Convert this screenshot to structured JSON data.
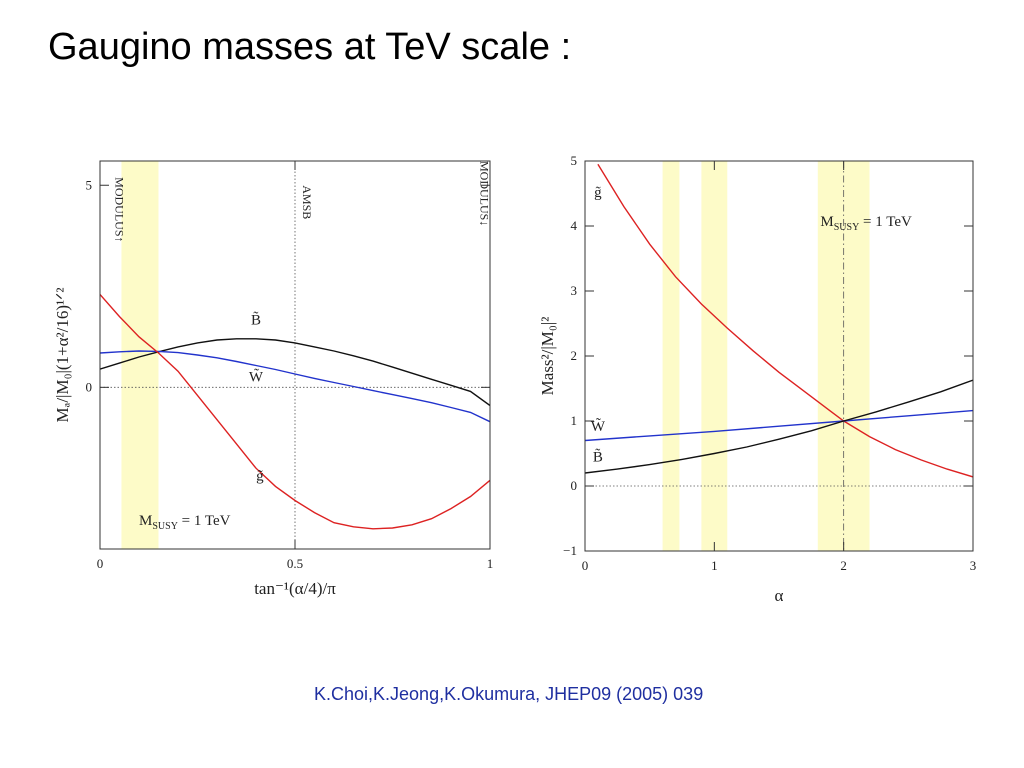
{
  "slide": {
    "title": "Gaugino masses at TeV scale :",
    "citation": "K.Choi,K.Jeong,K.Okumura, JHEP09 (2005) 039",
    "citation_color": "#1f2fa0"
  },
  "chart_data": [
    {
      "type": "line",
      "xlabel": "tan⁻¹(α/4)/π",
      "ylabel": "Mₐ/|M₀|(1+α²/16)¹ᐟ²",
      "xlim": [
        0,
        1
      ],
      "ylim": [
        -4,
        5.6
      ],
      "xticks": [
        {
          "value": 0,
          "label": "0"
        },
        {
          "value": 0.5,
          "label": "0.5"
        },
        {
          "value": 1,
          "label": "1"
        }
      ],
      "yticks": [
        {
          "value": 0,
          "label": "0"
        },
        {
          "value": 5,
          "label": "5"
        }
      ],
      "annotations": [
        {
          "text": "Mˢᵘˢʸ = 1 TeV",
          "main": "M",
          "sub": "SUSY",
          "tail": " = 1 TeV",
          "x": 0.1,
          "y": -3.4
        },
        {
          "text": "MODULUS↑",
          "x": 0.04,
          "y": 5.2,
          "rotate": 90
        },
        {
          "text": "AMSB",
          "x": 0.52,
          "y": 5.0,
          "rotate": 90
        },
        {
          "text": "MODULUS↓",
          "x": 0.975,
          "y": 5.6,
          "rotate": 90
        }
      ],
      "bands": [
        [
          0.055,
          0.15
        ]
      ],
      "vlines": [
        {
          "x": 0.5,
          "style": "dotted"
        }
      ],
      "hlines": [
        {
          "y": 0,
          "style": "dotted"
        }
      ],
      "series": [
        {
          "name": "B̃",
          "color": "#111111",
          "label_x": 0.4,
          "label_y": 1.55,
          "x": [
            0,
            0.05,
            0.1,
            0.15,
            0.2,
            0.25,
            0.3,
            0.35,
            0.4,
            0.45,
            0.5,
            0.55,
            0.6,
            0.65,
            0.7,
            0.75,
            0.8,
            0.85,
            0.9,
            0.95,
            1
          ],
          "y": [
            0.45,
            0.6,
            0.75,
            0.88,
            1.0,
            1.1,
            1.17,
            1.2,
            1.2,
            1.17,
            1.1,
            1.0,
            0.9,
            0.78,
            0.65,
            0.5,
            0.35,
            0.2,
            0.05,
            -0.1,
            -0.45
          ]
        },
        {
          "name": "W̃",
          "color": "#2233cc",
          "label_x": 0.4,
          "label_y": 0.15,
          "x": [
            0,
            0.05,
            0.1,
            0.15,
            0.2,
            0.25,
            0.3,
            0.35,
            0.4,
            0.45,
            0.5,
            0.55,
            0.6,
            0.65,
            0.7,
            0.75,
            0.8,
            0.85,
            0.9,
            0.95,
            1
          ],
          "y": [
            0.85,
            0.88,
            0.9,
            0.89,
            0.86,
            0.8,
            0.73,
            0.64,
            0.54,
            0.44,
            0.33,
            0.22,
            0.12,
            0.02,
            -0.08,
            -0.18,
            -0.28,
            -0.38,
            -0.5,
            -0.62,
            -0.85
          ]
        },
        {
          "name": "g̃",
          "color": "#dd2222",
          "label_x": 0.41,
          "label_y": -2.3,
          "x": [
            0,
            0.05,
            0.1,
            0.15,
            0.2,
            0.25,
            0.3,
            0.35,
            0.4,
            0.45,
            0.5,
            0.55,
            0.6,
            0.65,
            0.7,
            0.75,
            0.8,
            0.85,
            0.9,
            0.95,
            1
          ],
          "y": [
            2.3,
            1.75,
            1.25,
            0.85,
            0.4,
            -0.2,
            -0.8,
            -1.4,
            -2.0,
            -2.45,
            -2.8,
            -3.1,
            -3.35,
            -3.45,
            -3.5,
            -3.48,
            -3.4,
            -3.25,
            -3.0,
            -2.7,
            -2.3
          ]
        }
      ]
    },
    {
      "type": "line",
      "xlabel": "α",
      "ylabel": "Mass²/|M₀|²",
      "xlim": [
        0,
        3
      ],
      "ylim": [
        -1,
        5
      ],
      "xticks": [
        {
          "value": 0,
          "label": "0"
        },
        {
          "value": 1,
          "label": "1"
        },
        {
          "value": 2,
          "label": "2"
        },
        {
          "value": 3,
          "label": "3"
        }
      ],
      "yticks": [
        {
          "value": -1,
          "label": "−1"
        },
        {
          "value": 0,
          "label": "0"
        },
        {
          "value": 1,
          "label": "1"
        },
        {
          "value": 2,
          "label": "2"
        },
        {
          "value": 3,
          "label": "3"
        },
        {
          "value": 4,
          "label": "4"
        },
        {
          "value": 5,
          "label": "5"
        }
      ],
      "annotations": [
        {
          "text": "Mˢᵘˢʸ = 1 TeV",
          "main": "M",
          "sub": "SUSY",
          "tail": " = 1 TeV",
          "x": 1.82,
          "y": 4.0
        }
      ],
      "bands": [
        [
          0.6,
          0.73
        ],
        [
          0.9,
          1.1
        ],
        [
          1.8,
          2.2
        ]
      ],
      "vlines": [
        {
          "x": 2,
          "style": "dashdot"
        }
      ],
      "hlines": [
        {
          "y": 0,
          "style": "dotted"
        }
      ],
      "series": [
        {
          "name": "g̃",
          "color": "#dd2222",
          "label_x": 0.1,
          "label_y": 4.45,
          "x": [
            0.1,
            0.3,
            0.5,
            0.7,
            0.9,
            1.1,
            1.3,
            1.5,
            1.7,
            1.9,
            2.0,
            2.2,
            2.4,
            2.6,
            2.8,
            3.0
          ],
          "y": [
            4.95,
            4.3,
            3.72,
            3.22,
            2.8,
            2.43,
            2.08,
            1.75,
            1.45,
            1.15,
            1.0,
            0.76,
            0.56,
            0.4,
            0.26,
            0.14
          ]
        },
        {
          "name": "W̃",
          "color": "#2233cc",
          "label_x": 0.1,
          "label_y": 0.85,
          "x": [
            0,
            0.5,
            1.0,
            1.5,
            2.0,
            2.5,
            3.0
          ],
          "y": [
            0.7,
            0.77,
            0.84,
            0.92,
            1.0,
            1.08,
            1.16
          ]
        },
        {
          "name": "B̃",
          "color": "#111111",
          "label_x": 0.1,
          "label_y": 0.38,
          "x": [
            0,
            0.25,
            0.5,
            0.75,
            1.0,
            1.25,
            1.5,
            1.75,
            2.0,
            2.25,
            2.5,
            2.75,
            3.0
          ],
          "y": [
            0.2,
            0.26,
            0.33,
            0.41,
            0.5,
            0.6,
            0.72,
            0.85,
            1.0,
            1.14,
            1.29,
            1.45,
            1.63
          ]
        }
      ]
    }
  ]
}
